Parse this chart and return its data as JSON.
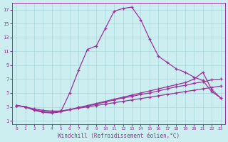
{
  "title": "",
  "xlabel": "Windchill (Refroidissement éolien,°C)",
  "ylabel": "",
  "xlim": [
    -0.5,
    23.5
  ],
  "ylim": [
    0.5,
    18
  ],
  "yticks": [
    1,
    3,
    5,
    7,
    9,
    11,
    13,
    15,
    17
  ],
  "xticks": [
    0,
    1,
    2,
    3,
    4,
    5,
    6,
    7,
    8,
    9,
    10,
    11,
    12,
    13,
    14,
    15,
    16,
    17,
    18,
    19,
    20,
    21,
    22,
    23
  ],
  "bg_color": "#cceef0",
  "grid_color": "#a8d8dc",
  "line_color": "#993399",
  "line1_x": [
    0,
    1,
    2,
    3,
    4,
    5,
    6,
    7,
    8,
    9,
    10,
    11,
    12,
    13,
    14,
    15,
    16,
    17,
    18,
    19,
    20,
    21,
    22,
    23
  ],
  "line1_y": [
    3.2,
    3.0,
    2.5,
    2.2,
    2.1,
    2.3,
    5.0,
    8.3,
    11.3,
    11.8,
    14.3,
    16.8,
    17.2,
    17.4,
    15.6,
    12.8,
    10.3,
    9.4,
    8.5,
    8.0,
    7.3,
    6.8,
    5.2,
    4.3
  ],
  "line2_x": [
    0,
    1,
    2,
    3,
    4,
    5,
    6,
    7,
    8,
    9,
    10,
    11,
    12,
    13,
    14,
    15,
    16,
    17,
    18,
    19,
    20,
    21,
    22,
    23
  ],
  "line2_y": [
    3.2,
    3.0,
    2.6,
    2.3,
    2.2,
    2.3,
    2.6,
    2.9,
    3.2,
    3.5,
    3.8,
    4.1,
    4.4,
    4.7,
    5.0,
    5.3,
    5.6,
    5.9,
    6.2,
    6.5,
    7.0,
    8.0,
    5.5,
    4.3
  ],
  "line3_x": [
    0,
    1,
    2,
    3,
    4,
    5,
    6,
    7,
    8,
    9,
    10,
    11,
    12,
    13,
    14,
    15,
    16,
    17,
    18,
    19,
    20,
    21,
    22,
    23
  ],
  "line3_y": [
    3.2,
    3.0,
    2.6,
    2.3,
    2.2,
    2.4,
    2.6,
    2.9,
    3.1,
    3.4,
    3.7,
    4.0,
    4.3,
    4.5,
    4.8,
    5.0,
    5.3,
    5.6,
    5.9,
    6.1,
    6.4,
    6.6,
    6.9,
    7.0
  ],
  "line4_x": [
    0,
    1,
    2,
    3,
    4,
    5,
    6,
    7,
    8,
    9,
    10,
    11,
    12,
    13,
    14,
    15,
    16,
    17,
    18,
    19,
    20,
    21,
    22,
    23
  ],
  "line4_y": [
    3.2,
    3.0,
    2.7,
    2.5,
    2.4,
    2.4,
    2.6,
    2.8,
    3.0,
    3.2,
    3.4,
    3.6,
    3.8,
    4.0,
    4.2,
    4.4,
    4.6,
    4.8,
    5.0,
    5.2,
    5.4,
    5.6,
    5.8,
    6.0
  ]
}
